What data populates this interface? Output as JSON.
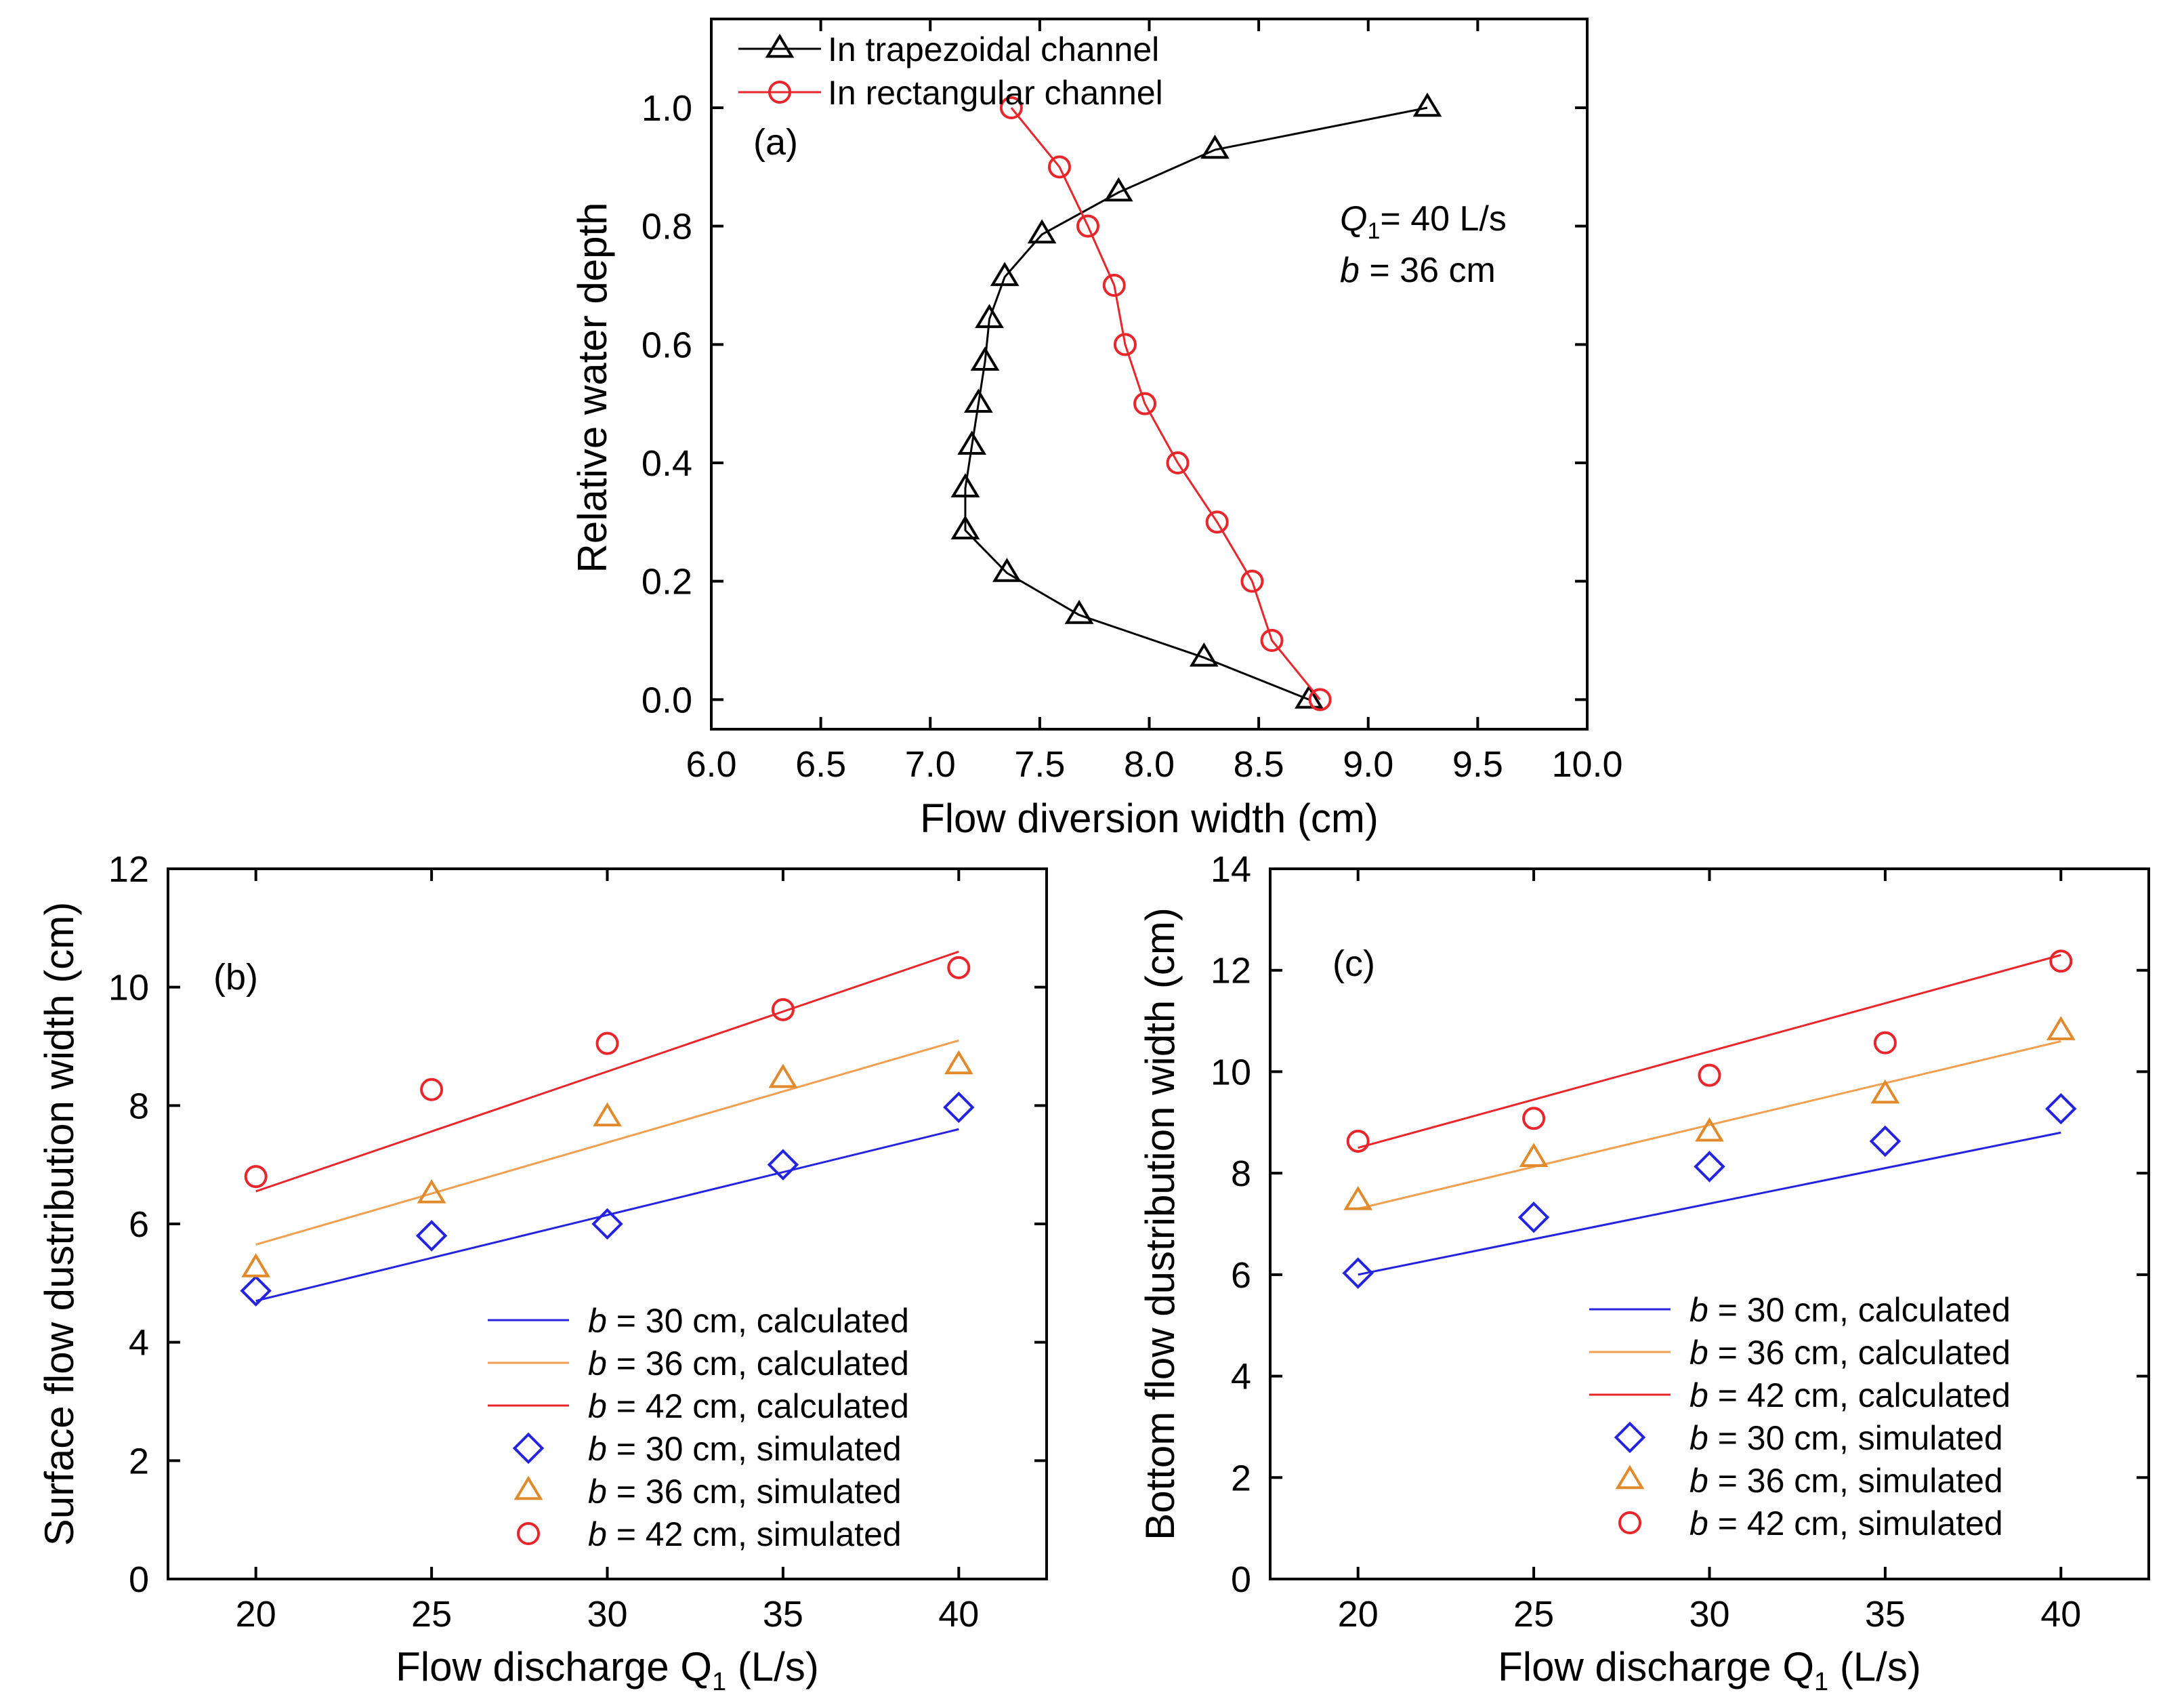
{
  "chart_data": [
    {
      "panel": "a",
      "type": "line",
      "panel_label": "(a)",
      "xlabel": "Flow diversion width (cm)",
      "ylabel": "Relative water depth",
      "xlim": [
        6.0,
        10.0
      ],
      "ylim": [
        -0.05,
        1.15
      ],
      "xticks": [
        "6.0",
        "6.5",
        "7.0",
        "7.5",
        "8.0",
        "8.5",
        "9.0",
        "9.5",
        "10.0"
      ],
      "yticks": [
        "0.0",
        "0.2",
        "0.4",
        "0.6",
        "0.8",
        "1.0"
      ],
      "annotation": {
        "q_label": "Q",
        "q_sub": "1",
        "q_value": "= 40 L/s",
        "b_label": "b",
        "b_value": " = 36 cm"
      },
      "series": [
        {
          "name": "In trapezoidal channel",
          "color": "#000000",
          "marker": "triangle",
          "points": [
            [
              8.73,
              0.0
            ],
            [
              8.25,
              0.071
            ],
            [
              7.68,
              0.143
            ],
            [
              7.35,
              0.214
            ],
            [
              7.16,
              0.286
            ],
            [
              7.16,
              0.357
            ],
            [
              7.19,
              0.429
            ],
            [
              7.22,
              0.5
            ],
            [
              7.25,
              0.571
            ],
            [
              7.27,
              0.643
            ],
            [
              7.34,
              0.714
            ],
            [
              7.51,
              0.786
            ],
            [
              7.86,
              0.857
            ],
            [
              8.3,
              0.929
            ],
            [
              9.27,
              1.0
            ]
          ]
        },
        {
          "name": "In rectangular channel",
          "color": "#e8262b",
          "marker": "circle",
          "points": [
            [
              8.78,
              0.0
            ],
            [
              8.56,
              0.1
            ],
            [
              8.47,
              0.2
            ],
            [
              8.31,
              0.3
            ],
            [
              8.13,
              0.4
            ],
            [
              7.98,
              0.5
            ],
            [
              7.89,
              0.6
            ],
            [
              7.84,
              0.7
            ],
            [
              7.72,
              0.8
            ],
            [
              7.59,
              0.9
            ],
            [
              7.37,
              1.0
            ]
          ]
        }
      ]
    },
    {
      "panel": "b",
      "type": "line",
      "panel_label": "(b)",
      "xlabel_main": "Flow discharge Q",
      "xlabel_sub": "1",
      "xlabel_unit": " (L/s)",
      "ylabel": "Surface flow dustribution width (cm)",
      "xlim": [
        17.5,
        42.5
      ],
      "ylim": [
        0,
        12
      ],
      "xticks": [
        "20",
        "25",
        "30",
        "35",
        "40"
      ],
      "yticks": [
        "0",
        "2",
        "4",
        "6",
        "8",
        "10",
        "12"
      ],
      "calculated": [
        {
          "name": "b = 30 cm, calculated",
          "b_label": "b",
          "rest": " = 30 cm, calculated",
          "color": "#2323e0",
          "x": [
            20,
            40
          ],
          "y": [
            4.7,
            7.6
          ]
        },
        {
          "name": "b = 36 cm, calculated",
          "b_label": "b",
          "rest": " = 36 cm, calculated",
          "color": "#f0a050",
          "x": [
            20,
            40
          ],
          "y": [
            5.65,
            9.1
          ]
        },
        {
          "name": "b = 42 cm, calculated",
          "b_label": "b",
          "rest": " = 42 cm, calculated",
          "color": "#e8262b",
          "x": [
            20,
            40
          ],
          "y": [
            6.55,
            10.6
          ]
        }
      ],
      "simulated": [
        {
          "name": "b = 30 cm, simulated",
          "b_label": "b",
          "rest": " = 30 cm, simulated",
          "color": "#2323e0",
          "marker": "diamond",
          "x": [
            20,
            25,
            30,
            35,
            40
          ],
          "y": [
            4.87,
            5.8,
            6.0,
            7.0,
            7.97
          ]
        },
        {
          "name": "b = 36 cm, simulated",
          "b_label": "b",
          "rest": " = 36 cm, simulated",
          "color": "#e08a2c",
          "marker": "triangle",
          "x": [
            20,
            25,
            30,
            35,
            40
          ],
          "y": [
            5.25,
            6.5,
            7.8,
            8.45,
            8.68
          ]
        },
        {
          "name": "b = 42 cm, simulated",
          "b_label": "b",
          "rest": " = 42 cm, simulated",
          "color": "#e8262b",
          "marker": "circle",
          "x": [
            20,
            25,
            30,
            35,
            40
          ],
          "y": [
            6.8,
            8.27,
            9.05,
            9.62,
            10.33
          ]
        }
      ]
    },
    {
      "panel": "c",
      "type": "line",
      "panel_label": "(c)",
      "xlabel_main": "Flow discharge Q",
      "xlabel_sub": "1",
      "xlabel_unit": " (L/s)",
      "ylabel": "Bottom flow dustribution width (cm)",
      "xlim": [
        17.5,
        42.5
      ],
      "ylim": [
        0,
        14
      ],
      "xticks": [
        "20",
        "25",
        "30",
        "35",
        "40"
      ],
      "yticks": [
        "0",
        "2",
        "4",
        "6",
        "8",
        "10",
        "12",
        "14"
      ],
      "calculated": [
        {
          "name": "b = 30 cm, calculated",
          "b_label": "b",
          "rest": " = 30 cm, calculated",
          "color": "#2323e0",
          "x": [
            20,
            40
          ],
          "y": [
            6.0,
            8.8
          ]
        },
        {
          "name": "b = 36 cm, calculated",
          "b_label": "b",
          "rest": " = 36 cm, calculated",
          "color": "#f0a050",
          "x": [
            20,
            40
          ],
          "y": [
            7.3,
            10.6
          ]
        },
        {
          "name": "b = 42 cm, calculated",
          "b_label": "b",
          "rest": " = 42 cm, calculated",
          "color": "#e8262b",
          "x": [
            20,
            40
          ],
          "y": [
            8.5,
            12.3
          ]
        }
      ],
      "simulated": [
        {
          "name": "b = 30 cm, simulated",
          "b_label": "b",
          "rest": " = 30 cm, simulated",
          "color": "#2323e0",
          "marker": "diamond",
          "x": [
            20,
            25,
            30,
            35,
            40
          ],
          "y": [
            6.03,
            7.13,
            8.13,
            8.63,
            9.27
          ]
        },
        {
          "name": "b = 36 cm, simulated",
          "b_label": "b",
          "rest": " = 36 cm, simulated",
          "color": "#e08a2c",
          "marker": "triangle",
          "x": [
            20,
            25,
            30,
            35,
            40
          ],
          "y": [
            7.45,
            8.3,
            8.8,
            9.55,
            10.8
          ]
        },
        {
          "name": "b = 42 cm, simulated",
          "b_label": "b",
          "rest": " = 42 cm, simulated",
          "color": "#e8262b",
          "marker": "circle",
          "x": [
            20,
            25,
            30,
            35,
            40
          ],
          "y": [
            8.63,
            9.08,
            9.93,
            10.57,
            12.18
          ]
        }
      ]
    }
  ]
}
